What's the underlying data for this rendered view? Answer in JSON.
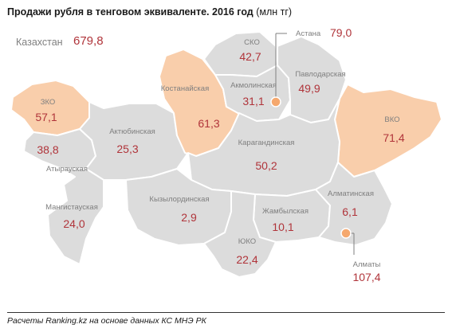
{
  "title": {
    "main": "Продажи рубля в тенговом эквиваленте. 2016 год",
    "unit": "(млн тг)"
  },
  "country": {
    "name": "Казахстан",
    "value": "679,8"
  },
  "colors": {
    "highlight": "#f9ceab",
    "base": "#dcdcdc",
    "value": "#b0343a",
    "label": "#7f7f7f"
  },
  "regions": {
    "zko": {
      "name": "ЗКО",
      "value": "57,1",
      "highlighted": true
    },
    "atyrau": {
      "name": "Атырауская",
      "value": "38,8",
      "highlighted": false
    },
    "aktobe": {
      "name": "Актюбинская",
      "value": "25,3",
      "highlighted": false
    },
    "mangystau": {
      "name": "Мангистауская",
      "value": "24,0",
      "highlighted": false
    },
    "kostanay": {
      "name": "Костанайская",
      "value": "61,3",
      "highlighted": true
    },
    "sko": {
      "name": "СКО",
      "value": "42,7",
      "highlighted": false
    },
    "akmola": {
      "name": "Акмолинская",
      "value": "31,1",
      "highlighted": false
    },
    "pavlodar": {
      "name": "Павлодарская",
      "value": "49,9",
      "highlighted": false
    },
    "vko": {
      "name": "ВКО",
      "value": "71,4",
      "highlighted": true
    },
    "karaganda": {
      "name": "Карагандинская",
      "value": "50,2",
      "highlighted": false
    },
    "kyzylorda": {
      "name": "Кызылординская",
      "value": "2,9",
      "highlighted": false
    },
    "zhambyl": {
      "name": "Жамбылская",
      "value": "10,1",
      "highlighted": false
    },
    "almaty_reg": {
      "name": "Алматинская",
      "value": "6,1",
      "highlighted": false
    },
    "yuko": {
      "name": "ЮКО",
      "value": "22,4",
      "highlighted": false
    }
  },
  "cities": {
    "astana": {
      "name": "Астана",
      "value": "79,0"
    },
    "almaty": {
      "name": "Алматы",
      "value": "107,4"
    }
  },
  "footer": "Расчеты Ranking.kz на основе данных КС МНЭ РК"
}
